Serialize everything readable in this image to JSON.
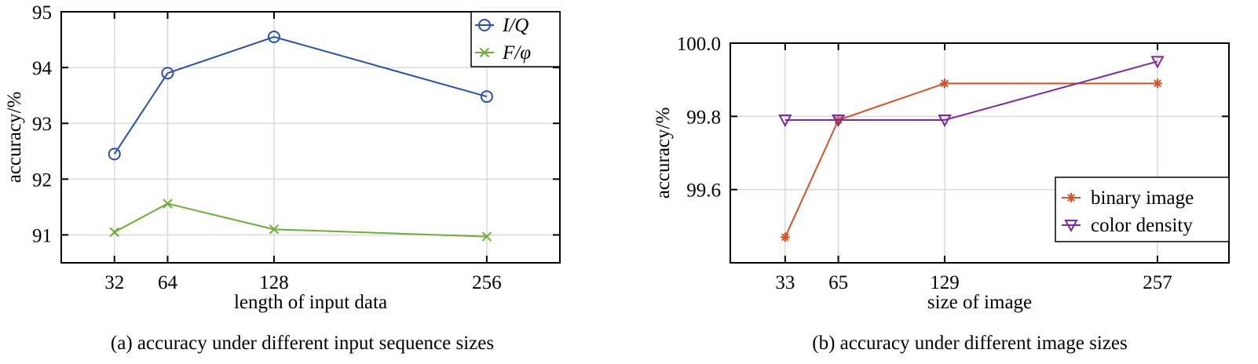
{
  "chart_data": [
    {
      "type": "line",
      "caption": "(a) accuracy under different input sequence sizes",
      "xlabel": "length of input data",
      "ylabel": "accuracy/%",
      "x": [
        32,
        64,
        128,
        256
      ],
      "xticks": [
        "32",
        "64",
        "128",
        "256"
      ],
      "xlim": [
        0,
        300
      ],
      "yticks": [
        "91",
        "92",
        "93",
        "94",
        "95"
      ],
      "ylim": [
        90.5,
        95
      ],
      "grid": true,
      "legend_position": "top-right",
      "series": [
        {
          "name": "I/Q",
          "values": [
            92.45,
            93.9,
            94.55,
            93.48
          ],
          "color": "#2b4fa8",
          "marker": "circle"
        },
        {
          "name": "F/φ",
          "values": [
            91.05,
            91.56,
            91.1,
            90.97
          ],
          "color": "#6fad3a",
          "marker": "x"
        }
      ]
    },
    {
      "type": "line",
      "caption": "(b) accuracy under different image sizes",
      "xlabel": "size of image",
      "ylabel": "accuracy/%",
      "x": [
        33,
        65,
        129,
        257
      ],
      "xticks": [
        "33",
        "65",
        "129",
        "257"
      ],
      "xlim": [
        0,
        300
      ],
      "yticks": [
        "99.6",
        "99.8",
        "100.0"
      ],
      "ylim": [
        99.4,
        100.0
      ],
      "grid": true,
      "legend_position": "bottom-right",
      "series": [
        {
          "name": "binary image",
          "values": [
            99.47,
            99.79,
            99.89,
            99.89
          ],
          "color": "#d2522a",
          "marker": "asterisk"
        },
        {
          "name": "color density",
          "values": [
            99.79,
            99.79,
            99.79,
            99.95
          ],
          "color": "#7a2a9c",
          "marker": "triangle-down"
        }
      ]
    }
  ]
}
